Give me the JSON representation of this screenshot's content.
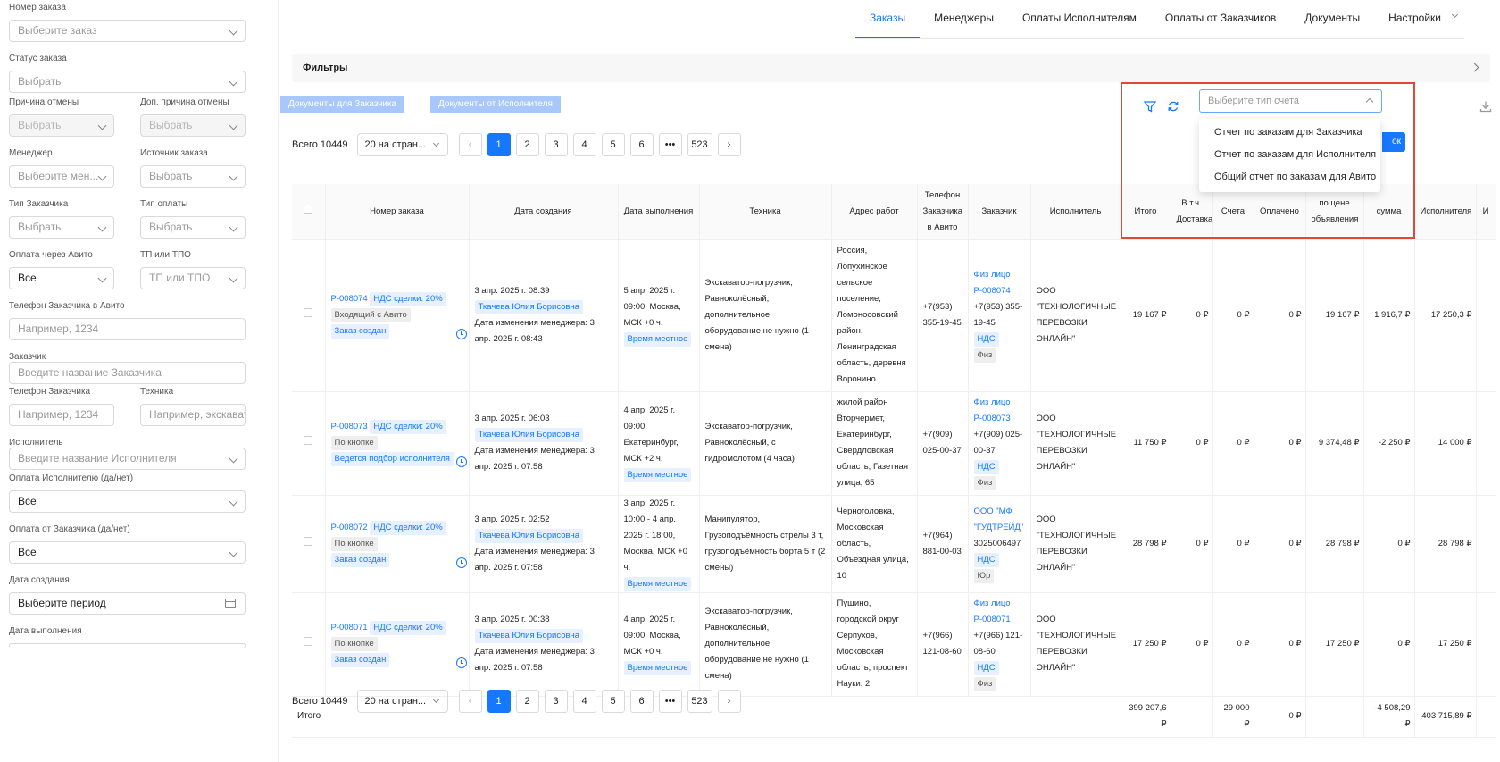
{
  "sidebar": {
    "order_no": {
      "label": "Номер заказа",
      "placeholder": "Выберите заказ"
    },
    "status": {
      "label": "Статус заказа",
      "placeholder": "Выбрать"
    },
    "cancel_reason": {
      "label": "Причина отмены",
      "placeholder": "Выбрать"
    },
    "cancel_reason2": {
      "label": "Доп. причина отмены",
      "placeholder": "Выбрать"
    },
    "manager": {
      "label": "Менеджер",
      "placeholder": "Выберите мен..."
    },
    "source": {
      "label": "Источник заказа",
      "placeholder": "Выбрать"
    },
    "cust_type": {
      "label": "Тип Заказчика",
      "placeholder": "Выбрать"
    },
    "pay_type": {
      "label": "Тип оплаты",
      "placeholder": "Выбрать"
    },
    "avito_pay": {
      "label": "Оплата через Авито",
      "value": "Все"
    },
    "tp": {
      "label": "ТП или ТПО",
      "placeholder": "ТП или ТПО"
    },
    "avito_phone": {
      "label": "Телефон Заказчика в Авито",
      "placeholder": "Например, 1234"
    },
    "customer": {
      "label": "Заказчик",
      "placeholder": "Введите название Заказчика"
    },
    "cust_phone": {
      "label": "Телефон Заказчика",
      "placeholder": "Например, 1234"
    },
    "tech": {
      "label": "Техника",
      "placeholder": "Например, экскавато"
    },
    "executor": {
      "label": "Исполнитель",
      "placeholder": "Введите название Исполнителя"
    },
    "exec_pay": {
      "label": "Оплата Исполнителю (да/нет)",
      "value": "Все"
    },
    "cust_pay": {
      "label": "Оплата от Заказчика (да/нет)",
      "value": "Все"
    },
    "created": {
      "label": "Дата создания",
      "placeholder": "Выберите период"
    },
    "done": {
      "label": "Дата выполнения"
    }
  },
  "nav": {
    "tabs": [
      "Заказы",
      "Менеджеры",
      "Оплаты Исполнителям",
      "Оплаты от Заказчиков",
      "Документы",
      "Настройки"
    ]
  },
  "filters": {
    "title": "Фильтры"
  },
  "buttons": {
    "docs_customer": "Документы для Заказчика",
    "docs_executor": "Документы от Исполнителя"
  },
  "report": {
    "placeholder": "Выберите тип счета",
    "options": [
      "Отчет по заказам для Заказчика",
      "Отчет по заказам для Исполнителя",
      "Общий отчет по заказам для Авито"
    ],
    "partial_btn": "ок"
  },
  "pagination": {
    "total": "Всего 10449",
    "size": "20 на стран...",
    "pages": [
      "1",
      "2",
      "3",
      "4",
      "5",
      "6",
      "•••",
      "523"
    ]
  },
  "columns": [
    "Номер заказа",
    "Дата создания",
    "Дата выполнения",
    "Техника",
    "Адрес работ",
    "Телефон Заказчика в Авито",
    "Заказчик",
    "Исполнитель",
    "Итого",
    "В т.ч. Доставка",
    "Счета",
    "Оплачено",
    "по цене объявления",
    "сумма",
    "Исполнителя",
    "И"
  ],
  "rows": [
    {
      "no": "Р-008074",
      "nds": "НДС сделки: 20%",
      "src": "Входящий с Авито",
      "status": "Заказ создан",
      "created": "3 апр. 2025 г. 08:39",
      "manager": "Ткачева Юлия Борисовна",
      "changed": "Дата изменения менеджера: 3 апр. 2025 г. 08:43",
      "done": "5 апр. 2025 г. 09:00, Москва, МСК +0 ч.",
      "time": "Время местное",
      "tech": "Экскаватор-погрузчик, Равноколёсный, дополнительное оборудование не нужно (1 смена)",
      "addr": "Россия, Лопухинское сельское поселение, Ломоносовский район, Ленинградская область, деревня Воронино",
      "phone": "+7(953) 355-19-45",
      "cust": "Физ лицо Р-008074",
      "cust_phone": "+7(953) 355-19-45",
      "nds2": "НДС",
      "ctype": "Физ",
      "exec": "ООО \"ТЕХНОЛОГИЧНЫЕ ПЕРЕВОЗКИ ОНЛАЙН\"",
      "total": "19 167 ₽",
      "deliv": "0 ₽",
      "bills": "0 ₽",
      "paid": "0 ₽",
      "price": "19 167 ₽",
      "sum": "1 916,7 ₽",
      "execsum": "17 250,3 ₽"
    },
    {
      "no": "Р-008073",
      "nds": "НДС сделки: 20%",
      "src": "По кнопке",
      "status": "Ведется подбор исполнителя",
      "created": "3 апр. 2025 г. 06:03",
      "manager": "Ткачева Юлия Борисовна",
      "changed": "Дата изменения менеджера: 3 апр. 2025 г. 07:58",
      "done": "4 апр. 2025 г. 09:00, Екатеринбург, МСК +2 ч.",
      "time": "Время местное",
      "tech": "Экскаватор-погрузчик, Равноколёсный, с гидромолотом (4 часа)",
      "addr": "жилой район Вторчермет, Екатеринбург, Свердловская область, Газетная улица, 65",
      "phone": "+7(909) 025-00-37",
      "cust": "Физ лицо Р-008073",
      "cust_phone": "+7(909) 025-00-37",
      "nds2": "НДС",
      "ctype": "Физ",
      "exec": "ООО \"ТЕХНОЛОГИЧНЫЕ ПЕРЕВОЗКИ ОНЛАЙН\"",
      "total": "11 750 ₽",
      "deliv": "0 ₽",
      "bills": "0 ₽",
      "paid": "0 ₽",
      "price": "9 374,48 ₽",
      "sum": "-2 250 ₽",
      "execsum": "14 000 ₽"
    },
    {
      "no": "Р-008072",
      "nds": "НДС сделки: 20%",
      "src": "По кнопке",
      "status": "Заказ создан",
      "created": "3 апр. 2025 г. 02:52",
      "manager": "Ткачева Юлия Борисовна",
      "changed": "Дата изменения менеджера: 3 апр. 2025 г. 07:58",
      "done": "3 апр. 2025 г. 10:00 - 4 апр. 2025 г. 18:00, Москва, МСК +0 ч.",
      "time": "Время местное",
      "tech": "Манипулятор, Грузоподъёмность стрелы 3 т, грузоподъёмность борта 5 т (2 смены)",
      "addr": "Черноголовка, Московская область, Объездная улица, 10",
      "phone": "+7(964) 881-00-03",
      "cust": "ООО \"МФ \"ГУДТРЕЙД\"",
      "cust_phone": "3025006497",
      "nds2": "НДС",
      "ctype": "Юр",
      "exec": "ООО \"ТЕХНОЛОГИЧНЫЕ ПЕРЕВОЗКИ ОНЛАЙН\"",
      "total": "28 798 ₽",
      "deliv": "0 ₽",
      "bills": "0 ₽",
      "paid": "0 ₽",
      "price": "28 798 ₽",
      "sum": "0 ₽",
      "execsum": "28 798 ₽"
    },
    {
      "no": "Р-008071",
      "nds": "НДС сделки: 20%",
      "src": "По кнопке",
      "status": "Заказ создан",
      "created": "3 апр. 2025 г. 00:38",
      "manager": "Ткачева Юлия Борисовна",
      "changed": "Дата изменения менеджера: 3 апр. 2025 г. 07:58",
      "done": "4 апр. 2025 г. 09:00, Москва, МСК +0 ч.",
      "time": "Время местное",
      "tech": "Экскаватор-погрузчик, Равноколёсный, дополнительное оборудование не нужно (1 смена)",
      "addr": "Пущино, городской округ Серпухов, Московская область, проспект Науки, 2",
      "phone": "+7(966) 121-08-60",
      "cust": "Физ лицо Р-008071",
      "cust_phone": "+7(966) 121-08-60",
      "nds2": "НДС",
      "ctype": "Физ",
      "exec": "ООО \"ТЕХНОЛОГИЧНЫЕ ПЕРЕВОЗКИ ОНЛАЙН\"",
      "total": "17 250 ₽",
      "deliv": "0 ₽",
      "bills": "0 ₽",
      "paid": "0 ₽",
      "price": "17 250 ₽",
      "sum": "0 ₽",
      "execsum": "17 250 ₽"
    }
  ],
  "totals": {
    "label": "Итого",
    "total": "399 207,6 ₽",
    "bills": "29 000 ₽",
    "paid": "0 ₽",
    "sum": "-4 508,29 ₽",
    "execsum": "403 715,89 ₽"
  }
}
